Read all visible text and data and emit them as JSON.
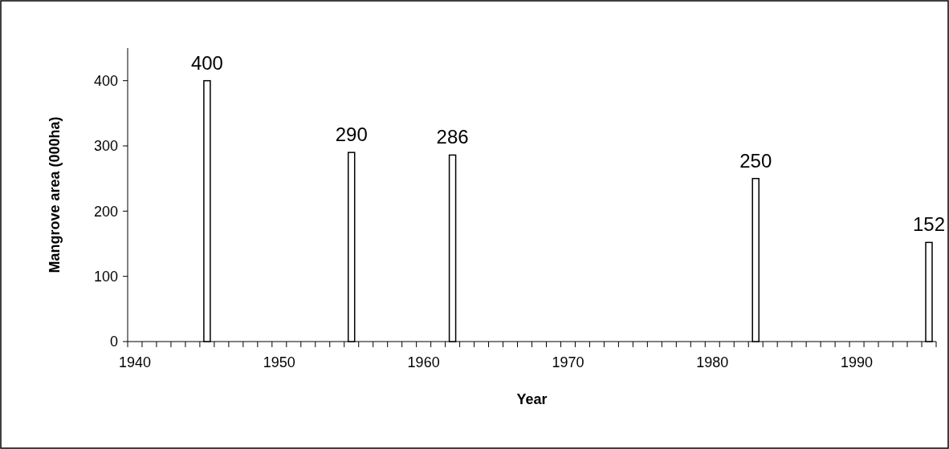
{
  "chart_data": {
    "type": "bar",
    "xlabel": "Year",
    "ylabel": "Mangrove area (000ha)",
    "categories": [
      "1940",
      null,
      null,
      null,
      null,
      null,
      null,
      null,
      null,
      null,
      "1950",
      null,
      null,
      null,
      null,
      null,
      null,
      null,
      null,
      null,
      "1960",
      null,
      null,
      null,
      null,
      null,
      null,
      null,
      null,
      null,
      "1970",
      null,
      null,
      null,
      null,
      null,
      null,
      null,
      null,
      null,
      "1980",
      null,
      null,
      null,
      null,
      null,
      null,
      null,
      null,
      null,
      "1990",
      null,
      null,
      null,
      null,
      null
    ],
    "values": [
      null,
      null,
      null,
      null,
      null,
      400,
      null,
      null,
      null,
      null,
      null,
      null,
      null,
      null,
      null,
      290,
      null,
      null,
      null,
      null,
      null,
      null,
      286,
      null,
      null,
      null,
      null,
      null,
      null,
      null,
      null,
      null,
      null,
      null,
      null,
      null,
      null,
      null,
      null,
      null,
      null,
      null,
      null,
      250,
      null,
      null,
      null,
      null,
      null,
      null,
      null,
      null,
      null,
      null,
      null,
      152
    ],
    "color": "#ffffff",
    "ylim": [
      0,
      450
    ],
    "yticks": [
      0,
      100,
      200,
      300,
      400
    ],
    "data_labels": true,
    "grid": false
  }
}
